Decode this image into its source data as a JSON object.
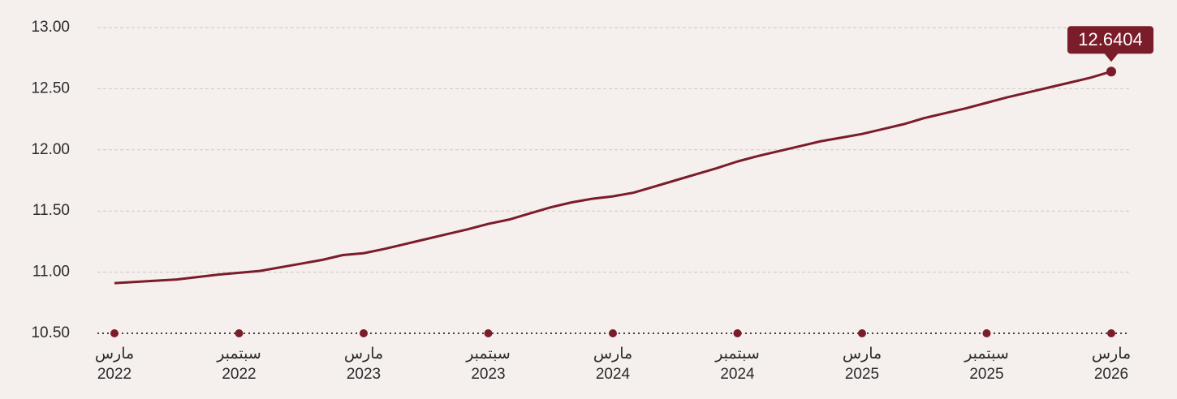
{
  "chart_data": {
    "type": "line",
    "categories": [
      "مارس 2022",
      null,
      null,
      null,
      null,
      null,
      "سبتمبر 2022",
      null,
      null,
      null,
      null,
      null,
      "مارس 2023",
      null,
      null,
      null,
      null,
      null,
      "سبتمبر 2023",
      null,
      null,
      null,
      null,
      null,
      "مارس 2024",
      null,
      null,
      null,
      null,
      null,
      "سبتمبر 2024",
      null,
      null,
      null,
      null,
      null,
      "مارس 2025",
      null,
      null,
      null,
      null,
      null,
      "سبتمبر 2025",
      null,
      null,
      null,
      null,
      null,
      "مارس 2026"
    ],
    "series": [
      {
        "color": "#7b1c2a",
        "values": [
          10.91,
          10.92,
          10.93,
          10.94,
          10.96,
          10.98,
          10.995,
          11.01,
          11.04,
          11.07,
          11.1,
          11.14,
          11.155,
          11.19,
          11.23,
          11.27,
          11.31,
          11.35,
          11.395,
          11.43,
          11.48,
          11.53,
          11.57,
          11.6,
          11.62,
          11.65,
          11.7,
          11.75,
          11.8,
          11.85,
          11.905,
          11.95,
          11.99,
          12.03,
          12.07,
          12.1,
          12.13,
          12.17,
          12.21,
          12.26,
          12.3,
          12.34,
          12.385,
          12.43,
          12.47,
          12.51,
          12.55,
          12.59,
          12.6404
        ]
      }
    ],
    "ylim": [
      10.5,
      13.0
    ],
    "yticks": [
      {
        "value": 10.5,
        "label": "10.50"
      },
      {
        "value": 11,
        "label": "11.00"
      },
      {
        "value": 11.5,
        "label": "11.50"
      },
      {
        "value": 12,
        "label": "12.00"
      },
      {
        "value": 12.5,
        "label": "12.50"
      },
      {
        "value": 13,
        "label": "13.00"
      }
    ],
    "grid": true
  }
}
